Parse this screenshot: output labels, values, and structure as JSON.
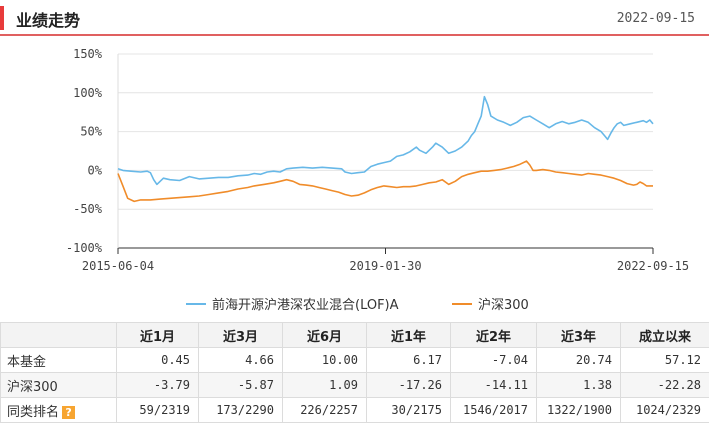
{
  "header": {
    "title": "业绩走势",
    "date": "2022-09-15"
  },
  "colors": {
    "fund": "#67b8e8",
    "index": "#f08c2a",
    "accent": "#e83b3b"
  },
  "legend": {
    "fund": "前海开源沪港深农业混合(LOF)A",
    "index": "沪深300"
  },
  "chart_data": {
    "type": "line",
    "y_ticks": [
      "150%",
      "100%",
      "50%",
      "0%",
      "-50%",
      "-100%"
    ],
    "x_ticks": [
      "2015-06-04",
      "2019-01-30",
      "2022-09-15"
    ],
    "ylim": [
      -100,
      150
    ],
    "series": [
      {
        "name": "前海开源沪港深农业混合(LOF)A",
        "points": [
          [
            0,
            2
          ],
          [
            1.5,
            0
          ],
          [
            4,
            -1
          ],
          [
            7,
            -2
          ],
          [
            9,
            -1
          ],
          [
            10,
            -3
          ],
          [
            11,
            -12
          ],
          [
            12,
            -18
          ],
          [
            14,
            -10
          ],
          [
            16,
            -12
          ],
          [
            19,
            -13
          ],
          [
            22,
            -8
          ],
          [
            25,
            -11
          ],
          [
            28,
            -10
          ],
          [
            31,
            -9
          ],
          [
            34,
            -9
          ],
          [
            37,
            -7
          ],
          [
            40,
            -6
          ],
          [
            42,
            -4
          ],
          [
            44,
            -5
          ],
          [
            46,
            -2
          ],
          [
            48,
            -1
          ],
          [
            50,
            -2
          ],
          [
            52,
            2
          ],
          [
            54,
            3
          ],
          [
            57,
            4
          ],
          [
            60,
            3
          ],
          [
            63,
            4
          ],
          [
            66,
            3
          ],
          [
            69,
            2
          ],
          [
            70,
            -2
          ],
          [
            72,
            -4
          ],
          [
            74,
            -3
          ],
          [
            76,
            -2
          ],
          [
            78,
            5
          ],
          [
            80,
            8
          ],
          [
            82,
            10
          ],
          [
            84,
            12
          ],
          [
            86,
            18
          ],
          [
            88,
            20
          ],
          [
            90,
            24
          ],
          [
            92,
            30
          ],
          [
            93,
            26
          ],
          [
            95,
            22
          ],
          [
            97,
            30
          ],
          [
            98,
            35
          ],
          [
            100,
            30
          ],
          [
            102,
            22
          ],
          [
            104,
            25
          ],
          [
            106,
            30
          ],
          [
            108,
            38
          ],
          [
            109,
            45
          ],
          [
            110,
            50
          ],
          [
            111,
            60
          ],
          [
            112,
            70
          ],
          [
            113,
            95
          ],
          [
            114,
            85
          ],
          [
            115,
            70
          ],
          [
            117,
            65
          ],
          [
            119,
            62
          ],
          [
            121,
            58
          ],
          [
            123,
            62
          ],
          [
            125,
            68
          ],
          [
            127,
            70
          ],
          [
            129,
            65
          ],
          [
            131,
            60
          ],
          [
            133,
            55
          ],
          [
            135,
            60
          ],
          [
            137,
            63
          ],
          [
            139,
            60
          ],
          [
            141,
            62
          ],
          [
            143,
            65
          ],
          [
            145,
            62
          ],
          [
            147,
            55
          ],
          [
            149,
            50
          ],
          [
            150,
            45
          ],
          [
            151,
            40
          ],
          [
            152,
            48
          ],
          [
            153,
            55
          ],
          [
            154,
            60
          ],
          [
            155,
            62
          ],
          [
            156,
            58
          ],
          [
            158,
            60
          ],
          [
            160,
            62
          ],
          [
            162,
            64
          ],
          [
            163,
            62
          ],
          [
            164,
            65
          ],
          [
            165,
            60
          ]
        ]
      },
      {
        "name": "沪深300",
        "points": [
          [
            0,
            -4
          ],
          [
            1.5,
            -20
          ],
          [
            3,
            -36
          ],
          [
            5,
            -40
          ],
          [
            7,
            -38
          ],
          [
            10,
            -38
          ],
          [
            13,
            -37
          ],
          [
            16,
            -36
          ],
          [
            19,
            -35
          ],
          [
            22,
            -34
          ],
          [
            25,
            -33
          ],
          [
            28,
            -31
          ],
          [
            31,
            -29
          ],
          [
            34,
            -27
          ],
          [
            37,
            -24
          ],
          [
            40,
            -22
          ],
          [
            42,
            -20
          ],
          [
            45,
            -18
          ],
          [
            48,
            -16
          ],
          [
            50,
            -14
          ],
          [
            52,
            -12
          ],
          [
            54,
            -14
          ],
          [
            56,
            -18
          ],
          [
            58,
            -19
          ],
          [
            60,
            -20
          ],
          [
            62,
            -22
          ],
          [
            64,
            -24
          ],
          [
            66,
            -26
          ],
          [
            68,
            -28
          ],
          [
            70,
            -31
          ],
          [
            72,
            -33
          ],
          [
            74,
            -32
          ],
          [
            76,
            -29
          ],
          [
            78,
            -25
          ],
          [
            80,
            -22
          ],
          [
            82,
            -20
          ],
          [
            84,
            -21
          ],
          [
            86,
            -22
          ],
          [
            88,
            -21
          ],
          [
            90,
            -21
          ],
          [
            92,
            -20
          ],
          [
            94,
            -18
          ],
          [
            96,
            -16
          ],
          [
            98,
            -15
          ],
          [
            100,
            -12
          ],
          [
            102,
            -18
          ],
          [
            104,
            -14
          ],
          [
            106,
            -8
          ],
          [
            108,
            -5
          ],
          [
            110,
            -3
          ],
          [
            112,
            -1
          ],
          [
            114,
            -1
          ],
          [
            116,
            0
          ],
          [
            118,
            1
          ],
          [
            120,
            3
          ],
          [
            122,
            5
          ],
          [
            124,
            8
          ],
          [
            126,
            12
          ],
          [
            127,
            7
          ],
          [
            128,
            0
          ],
          [
            129,
            0
          ],
          [
            131,
            1
          ],
          [
            133,
            0
          ],
          [
            135,
            -2
          ],
          [
            137,
            -3
          ],
          [
            139,
            -4
          ],
          [
            141,
            -5
          ],
          [
            143,
            -6
          ],
          [
            145,
            -4
          ],
          [
            147,
            -5
          ],
          [
            149,
            -6
          ],
          [
            151,
            -8
          ],
          [
            153,
            -10
          ],
          [
            155,
            -13
          ],
          [
            157,
            -17
          ],
          [
            159,
            -19
          ],
          [
            160,
            -18
          ],
          [
            161,
            -15
          ],
          [
            162,
            -17
          ],
          [
            163,
            -20
          ],
          [
            165,
            -20
          ]
        ]
      }
    ]
  },
  "table": {
    "headers": [
      "",
      "近1月",
      "近3月",
      "近6月",
      "近1年",
      "近2年",
      "近3年",
      "成立以来"
    ],
    "rows": [
      {
        "label": "本基金",
        "values": [
          "0.45",
          "4.66",
          "10.00",
          "6.17",
          "-7.04",
          "20.74",
          "57.12"
        ]
      },
      {
        "label": "沪深300",
        "values": [
          "-3.79",
          "-5.87",
          "1.09",
          "-17.26",
          "-14.11",
          "1.38",
          "-22.28"
        ]
      },
      {
        "label": "同类排名",
        "help": "?",
        "values": [
          "59/2319",
          "173/2290",
          "226/2257",
          "30/2175",
          "1546/2017",
          "1322/1900",
          "1024/2329"
        ]
      }
    ]
  }
}
